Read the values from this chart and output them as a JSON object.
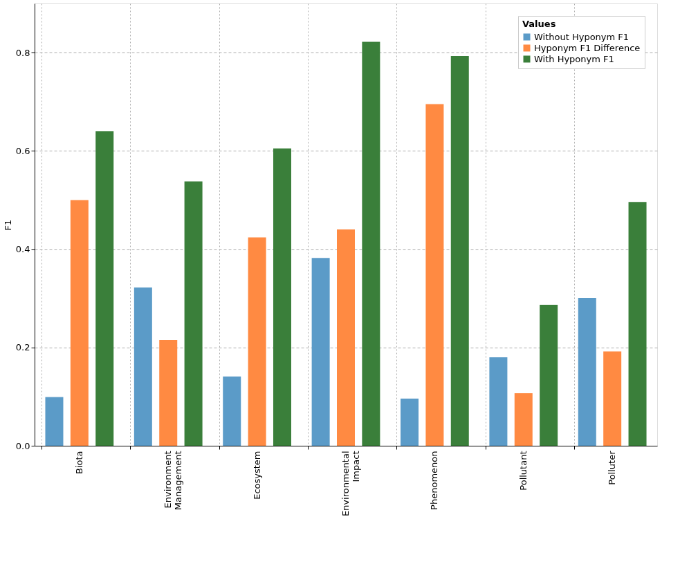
{
  "chart_data": {
    "type": "bar",
    "ylabel": "F1",
    "legend_title": "Values",
    "legend": "top right",
    "grid": true,
    "categories": [
      "Biota",
      "Environment Management",
      "Ecosystem",
      "Environmental Impact",
      "Phenomenon",
      "Pollutant",
      "Polluter"
    ],
    "series": [
      {
        "name": "Without Hyponym F1",
        "color": "#5b9bc8",
        "values": [
          0.099,
          0.322,
          0.141,
          0.382,
          0.096,
          0.18,
          0.301
        ]
      },
      {
        "name": "Hyponym F1 Difference",
        "color": "#ff8a42",
        "values": [
          0.5,
          0.215,
          0.424,
          0.44,
          0.695,
          0.107,
          0.192
        ]
      },
      {
        "name": "With Hyponym F1",
        "color": "#3a7f3a",
        "values": [
          0.64,
          0.538,
          0.605,
          0.822,
          0.793,
          0.287,
          0.496
        ]
      }
    ],
    "ylim": [
      0,
      0.9
    ],
    "yticks": [
      {
        "value": 0,
        "label": "0.0"
      },
      0.2,
      0.4,
      0.6,
      0.8
    ]
  }
}
